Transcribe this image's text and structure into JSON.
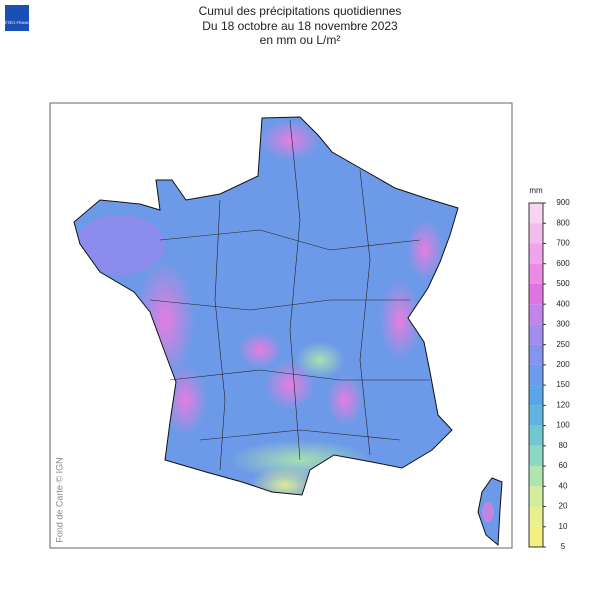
{
  "header": {
    "title": [
      "Cumul des précipitations quotidiennes",
      "Du 18 octobre au 18 novembre 2023",
      "en mm ou L/m²"
    ],
    "logo": "MÉTÉO FRANCE"
  },
  "credit": "Fond de Carte © IGN",
  "legend": {
    "unit": "mm",
    "ticks": [
      900,
      800,
      700,
      600,
      500,
      400,
      300,
      250,
      200,
      150,
      120,
      100,
      80,
      60,
      40,
      20,
      10,
      5
    ],
    "colors": [
      "#f8d4f2",
      "#f4bcee",
      "#f0a4ea",
      "#ec8ce6",
      "#e074e2",
      "#c284ea",
      "#a28cee",
      "#8494ee",
      "#6a9cea",
      "#5aa4e8",
      "#62b4e0",
      "#72c8d2",
      "#8ad8c2",
      "#b2e4b0",
      "#d2eca0",
      "#e8f090",
      "#f4f080"
    ]
  }
}
